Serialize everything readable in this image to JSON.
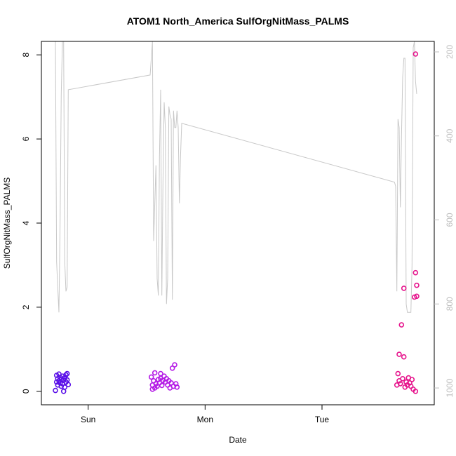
{
  "chart_data": {
    "type": "scatter",
    "title": "ATOM1 North_America SulfOrgNitMass_PALMS",
    "xlabel": "Date",
    "ylabel": "SulfOrgNitMass_PALMS",
    "x_ticks": [
      "Sun",
      "Mon",
      "Tue"
    ],
    "x_tick_values": [
      1.0,
      2.0,
      3.0
    ],
    "xlim": [
      0.6,
      3.96
    ],
    "y_ticks": [
      0,
      2,
      4,
      6,
      8
    ],
    "ylim": [
      -0.32,
      8.32
    ],
    "y2_label": "",
    "y2_ticks": [
      200,
      400,
      600,
      800,
      1000
    ],
    "y2lim": [
      1040,
      175
    ],
    "y2_reversed": true,
    "grid": false,
    "points": [
      {
        "x": 0.72,
        "y": 0.02,
        "color": "#5a10e8"
      },
      {
        "x": 0.73,
        "y": 0.38,
        "color": "#5a10e8"
      },
      {
        "x": 0.73,
        "y": 0.22,
        "color": "#5a10e8"
      },
      {
        "x": 0.74,
        "y": 0.3,
        "color": "#5a10e8"
      },
      {
        "x": 0.74,
        "y": 0.15,
        "color": "#5a10e8"
      },
      {
        "x": 0.75,
        "y": 0.25,
        "color": "#5a10e8"
      },
      {
        "x": 0.75,
        "y": 0.41,
        "color": "#5a10e8"
      },
      {
        "x": 0.76,
        "y": 0.2,
        "color": "#5a10e8"
      },
      {
        "x": 0.76,
        "y": 0.33,
        "color": "#5a10e8"
      },
      {
        "x": 0.77,
        "y": 0.28,
        "color": "#5a10e8"
      },
      {
        "x": 0.77,
        "y": 0.12,
        "color": "#5a10e8"
      },
      {
        "x": 0.78,
        "y": 0.36,
        "color": "#5a10e8"
      },
      {
        "x": 0.78,
        "y": 0.18,
        "color": "#5a10e8"
      },
      {
        "x": 0.79,
        "y": 0.0,
        "color": "#5a10e8"
      },
      {
        "x": 0.79,
        "y": 0.26,
        "color": "#5a10e8"
      },
      {
        "x": 0.8,
        "y": 0.1,
        "color": "#5a10e8"
      },
      {
        "x": 0.8,
        "y": 0.32,
        "color": "#5a10e8"
      },
      {
        "x": 0.81,
        "y": 0.22,
        "color": "#5a10e8"
      },
      {
        "x": 0.81,
        "y": 0.39,
        "color": "#5a10e8"
      },
      {
        "x": 0.82,
        "y": 0.42,
        "color": "#5a10e8"
      },
      {
        "x": 0.82,
        "y": 0.27,
        "color": "#5a10e8"
      },
      {
        "x": 0.83,
        "y": 0.16,
        "color": "#5a10e8"
      },
      {
        "x": 1.54,
        "y": 0.34,
        "color": "#b41ae6"
      },
      {
        "x": 1.55,
        "y": 0.15,
        "color": "#b41ae6"
      },
      {
        "x": 1.55,
        "y": 0.05,
        "color": "#b41ae6"
      },
      {
        "x": 1.56,
        "y": 0.25,
        "color": "#b41ae6"
      },
      {
        "x": 1.57,
        "y": 0.08,
        "color": "#b41ae6"
      },
      {
        "x": 1.57,
        "y": 0.44,
        "color": "#b41ae6"
      },
      {
        "x": 1.58,
        "y": 0.18,
        "color": "#b41ae6"
      },
      {
        "x": 1.59,
        "y": 0.12,
        "color": "#b41ae6"
      },
      {
        "x": 1.6,
        "y": 0.28,
        "color": "#b41ae6"
      },
      {
        "x": 1.61,
        "y": 0.2,
        "color": "#b41ae6"
      },
      {
        "x": 1.62,
        "y": 0.42,
        "color": "#b41ae6"
      },
      {
        "x": 1.62,
        "y": 0.31,
        "color": "#b41ae6"
      },
      {
        "x": 1.63,
        "y": 0.14,
        "color": "#b41ae6"
      },
      {
        "x": 1.64,
        "y": 0.26,
        "color": "#b41ae6"
      },
      {
        "x": 1.65,
        "y": 0.36,
        "color": "#b41ae6"
      },
      {
        "x": 1.66,
        "y": 0.22,
        "color": "#b41ae6"
      },
      {
        "x": 1.67,
        "y": 0.3,
        "color": "#b41ae6"
      },
      {
        "x": 1.68,
        "y": 0.15,
        "color": "#b41ae6"
      },
      {
        "x": 1.69,
        "y": 0.25,
        "color": "#b41ae6"
      },
      {
        "x": 1.7,
        "y": 0.08,
        "color": "#b41ae6"
      },
      {
        "x": 1.71,
        "y": 0.2,
        "color": "#b41ae6"
      },
      {
        "x": 1.72,
        "y": 0.55,
        "color": "#b41ae6"
      },
      {
        "x": 1.73,
        "y": 0.12,
        "color": "#b41ae6"
      },
      {
        "x": 1.74,
        "y": 0.63,
        "color": "#b41ae6"
      },
      {
        "x": 1.75,
        "y": 0.18,
        "color": "#b41ae6"
      },
      {
        "x": 1.76,
        "y": 0.1,
        "color": "#b41ae6"
      },
      {
        "x": 3.64,
        "y": 0.15,
        "color": "#e6148c"
      },
      {
        "x": 3.65,
        "y": 0.42,
        "color": "#e6148c"
      },
      {
        "x": 3.66,
        "y": 0.25,
        "color": "#e6148c"
      },
      {
        "x": 3.66,
        "y": 0.88,
        "color": "#e6148c"
      },
      {
        "x": 3.67,
        "y": 0.18,
        "color": "#e6148c"
      },
      {
        "x": 3.68,
        "y": 1.58,
        "color": "#e6148c"
      },
      {
        "x": 3.69,
        "y": 0.3,
        "color": "#e6148c"
      },
      {
        "x": 3.7,
        "y": 2.45,
        "color": "#e6148c"
      },
      {
        "x": 3.7,
        "y": 0.82,
        "color": "#e6148c"
      },
      {
        "x": 3.71,
        "y": 0.1,
        "color": "#e6148c"
      },
      {
        "x": 3.72,
        "y": 0.22,
        "color": "#e6148c"
      },
      {
        "x": 3.73,
        "y": 0.15,
        "color": "#e6148c"
      },
      {
        "x": 3.74,
        "y": 0.32,
        "color": "#e6148c"
      },
      {
        "x": 3.75,
        "y": 0.2,
        "color": "#e6148c"
      },
      {
        "x": 3.76,
        "y": 0.12,
        "color": "#e6148c"
      },
      {
        "x": 3.77,
        "y": 0.28,
        "color": "#e6148c"
      },
      {
        "x": 3.78,
        "y": 0.05,
        "color": "#e6148c"
      },
      {
        "x": 3.79,
        "y": 2.24,
        "color": "#e6148c"
      },
      {
        "x": 3.8,
        "y": 0.0,
        "color": "#e6148c"
      },
      {
        "x": 3.8,
        "y": 2.82,
        "color": "#e6148c"
      },
      {
        "x": 3.81,
        "y": 2.52,
        "color": "#e6148c"
      },
      {
        "x": 3.81,
        "y": 2.26,
        "color": "#e6148c"
      },
      {
        "x": 3.8,
        "y": 8.02,
        "color": "#e6148c"
      }
    ],
    "pressure_line": [
      [
        0.71,
        95
      ],
      [
        0.72,
        130
      ],
      [
        0.73,
        700
      ],
      [
        0.74,
        760
      ],
      [
        0.75,
        820
      ],
      [
        0.76,
        600
      ],
      [
        0.77,
        300
      ],
      [
        0.78,
        130
      ],
      [
        0.79,
        95
      ],
      [
        0.8,
        700
      ],
      [
        0.81,
        770
      ],
      [
        0.82,
        760
      ],
      [
        0.83,
        290
      ],
      [
        1.53,
        255
      ],
      [
        1.55,
        130
      ],
      [
        1.56,
        650
      ],
      [
        1.58,
        470
      ],
      [
        1.59,
        740
      ],
      [
        1.6,
        780
      ],
      [
        1.61,
        450
      ],
      [
        1.62,
        290
      ],
      [
        1.63,
        780
      ],
      [
        1.64,
        510
      ],
      [
        1.65,
        320
      ],
      [
        1.66,
        380
      ],
      [
        1.67,
        800
      ],
      [
        1.68,
        740
      ],
      [
        1.69,
        330
      ],
      [
        1.7,
        350
      ],
      [
        1.71,
        360
      ],
      [
        1.72,
        790
      ],
      [
        1.73,
        340
      ],
      [
        1.74,
        380
      ],
      [
        1.75,
        380
      ],
      [
        1.76,
        340
      ],
      [
        1.77,
        380
      ],
      [
        1.78,
        560
      ],
      [
        1.79,
        450
      ],
      [
        1.8,
        370
      ],
      [
        3.62,
        510
      ],
      [
        3.63,
        520
      ],
      [
        3.64,
        770
      ],
      [
        3.65,
        360
      ],
      [
        3.66,
        380
      ],
      [
        3.67,
        570
      ],
      [
        3.68,
        400
      ],
      [
        3.69,
        260
      ],
      [
        3.7,
        215
      ],
      [
        3.71,
        215
      ],
      [
        3.72,
        800
      ],
      [
        3.73,
        820
      ],
      [
        3.74,
        820
      ],
      [
        3.75,
        820
      ],
      [
        3.76,
        820
      ],
      [
        3.77,
        710
      ],
      [
        3.78,
        190
      ],
      [
        3.79,
        170
      ],
      [
        3.8,
        270
      ],
      [
        3.81,
        300
      ]
    ],
    "colors": {
      "series_sun": "#5a10e8",
      "series_mon": "#b41ae6",
      "series_tue": "#e6148c",
      "pressure_line": "#c8c8c8",
      "right_axis": "#bebebe"
    }
  }
}
